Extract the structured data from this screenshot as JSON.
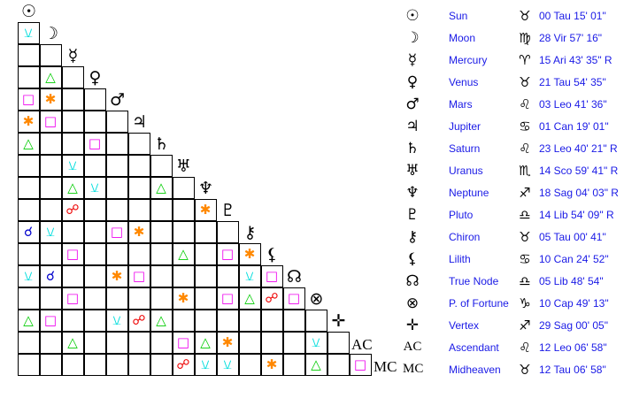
{
  "points": [
    {
      "glyph": "☉",
      "icon": "sun-icon",
      "name": "Sun",
      "sign": "♉",
      "sign_icon": "taurus-icon",
      "position": "00 Tau 15' 01\""
    },
    {
      "glyph": "☽",
      "icon": "moon-icon",
      "name": "Moon",
      "sign": "♍",
      "sign_icon": "virgo-icon",
      "position": "28 Vir 57' 16\""
    },
    {
      "glyph": "☿",
      "icon": "mercury-icon",
      "name": "Mercury",
      "sign": "♈",
      "sign_icon": "aries-icon",
      "position": "15 Ari 43' 35\" R"
    },
    {
      "glyph": "♀",
      "icon": "venus-icon",
      "name": "Venus",
      "sign": "♉",
      "sign_icon": "taurus-icon",
      "position": "21 Tau 54' 35\""
    },
    {
      "glyph": "♂",
      "icon": "mars-icon",
      "name": "Mars",
      "sign": "♌",
      "sign_icon": "leo-icon",
      "position": "03 Leo 41' 36\""
    },
    {
      "glyph": "♃",
      "icon": "jupiter-icon",
      "name": "Jupiter",
      "sign": "♋",
      "sign_icon": "cancer-icon",
      "position": "01 Can 19' 01\""
    },
    {
      "glyph": "♄",
      "icon": "saturn-icon",
      "name": "Saturn",
      "sign": "♌",
      "sign_icon": "leo-icon",
      "position": "23 Leo 40' 21\" R"
    },
    {
      "glyph": "♅",
      "icon": "uranus-icon",
      "name": "Uranus",
      "sign": "♏",
      "sign_icon": "scorpio-icon",
      "position": "14 Sco 59' 41\" R"
    },
    {
      "glyph": "♆",
      "icon": "neptune-icon",
      "name": "Neptune",
      "sign": "♐",
      "sign_icon": "sagittarius-icon",
      "position": "18 Sag 04' 03\" R"
    },
    {
      "glyph": "♇",
      "icon": "pluto-icon",
      "name": "Pluto",
      "sign": "♎",
      "sign_icon": "libra-icon",
      "position": "14 Lib 54' 09\" R"
    },
    {
      "glyph": "⚷",
      "icon": "chiron-icon",
      "name": "Chiron",
      "sign": "♉",
      "sign_icon": "taurus-icon",
      "position": "05 Tau 00' 41\""
    },
    {
      "glyph": "⚸",
      "icon": "lilith-icon",
      "name": "Lilith",
      "sign": "♋",
      "sign_icon": "cancer-icon",
      "position": "10 Can 24' 52\""
    },
    {
      "glyph": "☊",
      "icon": "true-node-icon",
      "name": "True Node",
      "sign": "♎",
      "sign_icon": "libra-icon",
      "position": "05 Lib 48' 54\""
    },
    {
      "glyph": "⊗",
      "icon": "part-of-fortune-icon",
      "name": "P. of Fortune",
      "sign": "♑",
      "sign_icon": "capricorn-icon",
      "position": "10 Cap 49' 13\""
    },
    {
      "glyph": "✛",
      "icon": "vertex-icon",
      "name": "Vertex",
      "sign": "♐",
      "sign_icon": "sagittarius-icon",
      "position": "29 Sag 00' 05\""
    },
    {
      "glyph": "AC",
      "icon": "ascendant-label",
      "name": "Ascendant",
      "sign": "♌",
      "sign_icon": "leo-icon",
      "position": "12 Leo 06' 58\""
    },
    {
      "glyph": "MC",
      "icon": "midheaven-label",
      "name": "Midheaven",
      "sign": "♉",
      "sign_icon": "taurus-icon",
      "position": "12 Tau 06' 58\""
    }
  ],
  "aspect_types": {
    "conjunction": {
      "symbol": "☌",
      "color": "#0000cc"
    },
    "opposition": {
      "symbol": "☍",
      "color": "#ee0000"
    },
    "trine": {
      "symbol": "△",
      "color": "#00cc00"
    },
    "square": {
      "symbol": "□",
      "color": "#ee00ee"
    },
    "sextile": {
      "symbol": "✱",
      "color": "#ff8800"
    },
    "semisextile": {
      "symbol": "⚺",
      "color": "#00dddd"
    }
  },
  "aspects": [
    [],
    [
      [
        0,
        "semisextile"
      ]
    ],
    [],
    [
      [
        1,
        "trine"
      ]
    ],
    [
      [
        0,
        "square"
      ],
      [
        1,
        "sextile"
      ]
    ],
    [
      [
        0,
        "sextile"
      ],
      [
        1,
        "square"
      ]
    ],
    [
      [
        0,
        "trine"
      ],
      [
        3,
        "square"
      ]
    ],
    [
      [
        2,
        "semisextile"
      ]
    ],
    [
      [
        2,
        "trine"
      ],
      [
        3,
        "semisextile"
      ],
      [
        6,
        "trine"
      ]
    ],
    [
      [
        2,
        "opposition"
      ],
      [
        8,
        "sextile"
      ]
    ],
    [
      [
        0,
        "conjunction"
      ],
      [
        1,
        "semisextile"
      ],
      [
        4,
        "square"
      ],
      [
        5,
        "sextile"
      ]
    ],
    [
      [
        2,
        "square"
      ],
      [
        7,
        "trine"
      ],
      [
        9,
        "square"
      ],
      [
        10,
        "sextile"
      ]
    ],
    [
      [
        0,
        "semisextile"
      ],
      [
        1,
        "conjunction"
      ],
      [
        4,
        "sextile"
      ],
      [
        5,
        "square"
      ],
      [
        10,
        "semisextile"
      ],
      [
        11,
        "square"
      ]
    ],
    [
      [
        2,
        "square"
      ],
      [
        7,
        "sextile"
      ],
      [
        9,
        "square"
      ],
      [
        10,
        "trine"
      ],
      [
        11,
        "opposition"
      ],
      [
        12,
        "square"
      ]
    ],
    [
      [
        0,
        "trine"
      ],
      [
        1,
        "square"
      ],
      [
        4,
        "semisextile"
      ],
      [
        5,
        "opposition"
      ],
      [
        6,
        "trine"
      ]
    ],
    [
      [
        2,
        "trine"
      ],
      [
        7,
        "square"
      ],
      [
        8,
        "trine"
      ],
      [
        9,
        "sextile"
      ],
      [
        13,
        "semisextile"
      ]
    ],
    [
      [
        7,
        "opposition"
      ],
      [
        8,
        "semisextile"
      ],
      [
        9,
        "semisextile"
      ],
      [
        11,
        "sextile"
      ],
      [
        13,
        "trine"
      ],
      [
        15,
        "square"
      ]
    ]
  ]
}
